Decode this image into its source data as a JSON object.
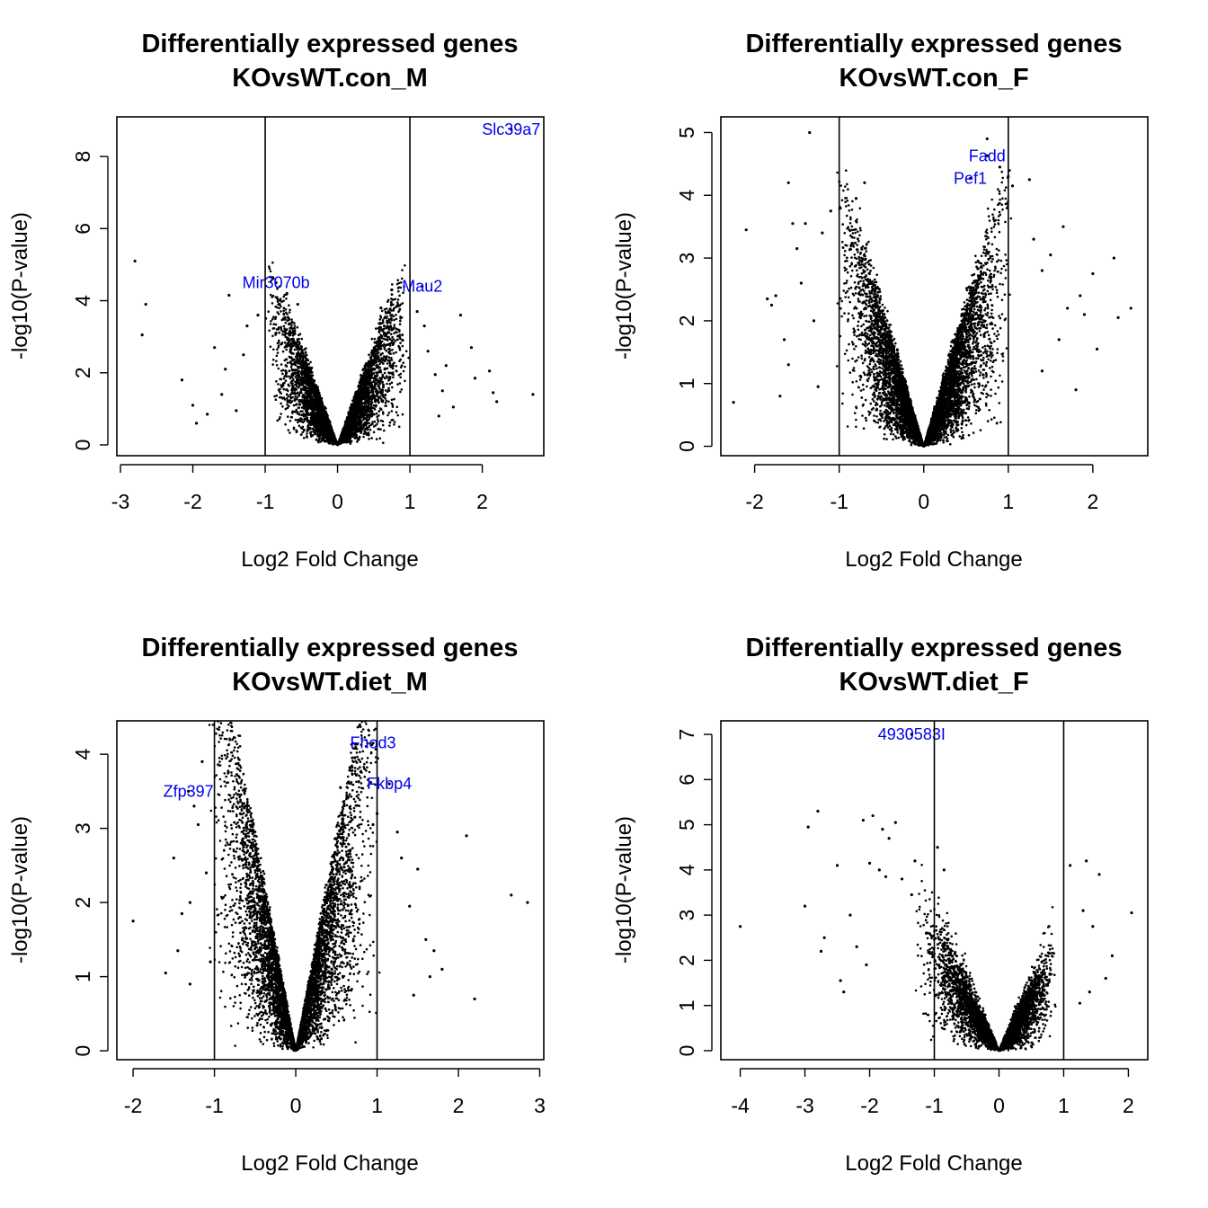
{
  "figure": {
    "point_color": "#000000",
    "label_color": "#0000ee"
  },
  "chart_data": [
    {
      "type": "scatter",
      "title": "Differentially expressed genes",
      "subtitle": "KOvsWT.con_M",
      "xlabel": "Log2 Fold Change",
      "ylabel": "-log10(P-value)",
      "xlim": [
        -3.05,
        2.85
      ],
      "ylim": [
        -0.3,
        9.1
      ],
      "xticks": [
        -3,
        -2,
        -1,
        0,
        1,
        2
      ],
      "yticks": [
        0,
        2,
        4,
        6,
        8
      ],
      "thresholds": [
        -1,
        1
      ],
      "grid": false,
      "legend": "none",
      "cloud": {
        "xmin": -1.0,
        "xmax": 1.0,
        "steepness": 5.2,
        "spread": 1.2,
        "count": 5000
      },
      "outliers": [
        [
          -2.8,
          5.1
        ],
        [
          -2.65,
          3.9
        ],
        [
          -2.7,
          3.05
        ],
        [
          -2.15,
          1.8
        ],
        [
          -2.0,
          1.1
        ],
        [
          -1.95,
          0.6
        ],
        [
          -1.7,
          2.7
        ],
        [
          -1.55,
          2.1
        ],
        [
          -1.5,
          4.15
        ],
        [
          -1.6,
          1.4
        ],
        [
          -1.8,
          0.85
        ],
        [
          -1.25,
          3.3
        ],
        [
          -1.3,
          2.5
        ],
        [
          -1.1,
          3.6
        ],
        [
          -1.4,
          0.95
        ],
        [
          -0.7,
          4.2
        ],
        [
          -0.55,
          3.9
        ],
        [
          -0.85,
          3.1
        ],
        [
          0.6,
          3.8
        ],
        [
          0.75,
          4.3
        ],
        [
          0.9,
          2.9
        ],
        [
          1.1,
          3.7
        ],
        [
          1.2,
          3.3
        ],
        [
          1.25,
          2.6
        ],
        [
          1.35,
          1.95
        ],
        [
          1.45,
          1.5
        ],
        [
          1.7,
          3.6
        ],
        [
          1.5,
          2.2
        ],
        [
          1.6,
          1.05
        ],
        [
          1.85,
          2.7
        ],
        [
          2.1,
          2.05
        ],
        [
          2.15,
          1.45
        ],
        [
          2.2,
          1.2
        ],
        [
          2.7,
          1.4
        ],
        [
          1.9,
          1.85
        ],
        [
          1.4,
          0.8
        ]
      ],
      "highlight": [
        {
          "gene": "Slc39a7",
          "x": 2.4,
          "y": 8.75
        },
        {
          "gene": "Mir3070b",
          "x": -0.85,
          "y": 4.5
        },
        {
          "gene": "Mau2",
          "x": 1.17,
          "y": 4.4
        }
      ]
    },
    {
      "type": "scatter",
      "title": "Differentially expressed genes",
      "subtitle": "KOvsWT.con_F",
      "xlabel": "Log2 Fold Change",
      "ylabel": "-log10(P-value)",
      "xlim": [
        -2.4,
        2.65
      ],
      "ylim": [
        -0.15,
        5.25
      ],
      "xticks": [
        -2,
        -1,
        0,
        1,
        2
      ],
      "yticks": [
        0,
        1,
        2,
        3,
        4,
        5
      ],
      "thresholds": [
        -1,
        1
      ],
      "grid": false,
      "legend": "none",
      "cloud": {
        "xmin": -1.05,
        "xmax": 1.05,
        "steepness": 4.3,
        "spread": 0.9,
        "count": 6500
      },
      "outliers": [
        [
          -2.25,
          0.7
        ],
        [
          -2.1,
          3.45
        ],
        [
          -1.85,
          2.35
        ],
        [
          -1.8,
          2.25
        ],
        [
          -1.75,
          2.4
        ],
        [
          -1.6,
          4.2
        ],
        [
          -1.55,
          3.55
        ],
        [
          -1.5,
          3.15
        ],
        [
          -1.65,
          1.7
        ],
        [
          -1.7,
          0.8
        ],
        [
          -1.4,
          3.55
        ],
        [
          -1.35,
          5.0
        ],
        [
          -1.3,
          2.0
        ],
        [
          -1.2,
          3.4
        ],
        [
          -1.45,
          2.6
        ],
        [
          -1.6,
          1.3
        ],
        [
          -1.25,
          0.95
        ],
        [
          -1.1,
          3.75
        ],
        [
          -0.8,
          3.95
        ],
        [
          -0.7,
          4.2
        ],
        [
          0.75,
          4.9
        ],
        [
          0.9,
          4.45
        ],
        [
          1.0,
          4.3
        ],
        [
          1.05,
          4.15
        ],
        [
          1.25,
          4.25
        ],
        [
          1.3,
          3.3
        ],
        [
          1.4,
          2.8
        ],
        [
          1.5,
          3.05
        ],
        [
          1.65,
          3.5
        ],
        [
          1.7,
          2.2
        ],
        [
          1.85,
          2.4
        ],
        [
          1.9,
          2.1
        ],
        [
          2.05,
          1.55
        ],
        [
          2.25,
          3.0
        ],
        [
          2.3,
          2.05
        ],
        [
          2.45,
          2.2
        ],
        [
          1.8,
          0.9
        ],
        [
          1.4,
          1.2
        ],
        [
          1.6,
          1.7
        ],
        [
          2.0,
          2.75
        ]
      ],
      "highlight": [
        {
          "gene": "Fadd",
          "x": 0.75,
          "y": 4.63
        },
        {
          "gene": "Pef1",
          "x": 0.55,
          "y": 4.27
        }
      ]
    },
    {
      "type": "scatter",
      "title": "Differentially expressed genes",
      "subtitle": "KOvsWT.diet_M",
      "xlabel": "Log2 Fold Change",
      "ylabel": "-log10(P-value)",
      "xlim": [
        -2.2,
        3.05
      ],
      "ylim": [
        -0.12,
        4.45
      ],
      "xticks": [
        -2,
        -1,
        0,
        1,
        2,
        3
      ],
      "yticks": [
        0,
        1,
        2,
        3,
        4
      ],
      "thresholds": [
        -1,
        1
      ],
      "grid": false,
      "legend": "none",
      "cloud": {
        "xmin": -1.1,
        "xmax": 1.05,
        "steepness": 5.6,
        "spread": 0.75,
        "count": 5500
      },
      "outliers": [
        [
          -2.0,
          1.75
        ],
        [
          -1.6,
          1.05
        ],
        [
          -1.5,
          2.6
        ],
        [
          -1.45,
          1.35
        ],
        [
          -1.3,
          2.0
        ],
        [
          -1.25,
          3.3
        ],
        [
          -1.2,
          3.05
        ],
        [
          -1.15,
          3.9
        ],
        [
          -1.3,
          0.9
        ],
        [
          -1.1,
          2.4
        ],
        [
          -1.05,
          1.2
        ],
        [
          -0.6,
          3.3
        ],
        [
          -0.55,
          3.1
        ],
        [
          -0.65,
          2.7
        ],
        [
          -1.4,
          1.85
        ],
        [
          0.55,
          3.55
        ],
        [
          0.95,
          3.05
        ],
        [
          1.0,
          3.2
        ],
        [
          1.25,
          2.95
        ],
        [
          1.3,
          2.6
        ],
        [
          1.4,
          1.95
        ],
        [
          1.5,
          2.45
        ],
        [
          1.6,
          1.5
        ],
        [
          1.65,
          1.0
        ],
        [
          1.7,
          1.35
        ],
        [
          2.1,
          2.9
        ],
        [
          2.2,
          0.7
        ],
        [
          2.65,
          2.1
        ],
        [
          2.85,
          2.0
        ],
        [
          1.8,
          1.1
        ],
        [
          1.45,
          0.75
        ]
      ],
      "highlight": [
        {
          "gene": "Fhod3",
          "x": 0.95,
          "y": 4.15
        },
        {
          "gene": "Fkbp4",
          "x": 1.15,
          "y": 3.6
        },
        {
          "gene": "Zfp397",
          "x": -1.32,
          "y": 3.5
        }
      ]
    },
    {
      "type": "scatter",
      "title": "Differentially expressed genes",
      "subtitle": "KOvsWT.diet_F",
      "xlabel": "Log2 Fold Change",
      "ylabel": "-log10(P-value)",
      "xlim": [
        -4.3,
        2.3
      ],
      "ylim": [
        -0.2,
        7.3
      ],
      "xticks": [
        -4,
        -3,
        -2,
        -1,
        0,
        1,
        2
      ],
      "yticks": [
        0,
        1,
        2,
        3,
        4,
        5,
        6,
        7
      ],
      "thresholds": [
        -1,
        1
      ],
      "grid": false,
      "legend": "none",
      "cloud": {
        "xmin": -1.3,
        "xmax": 0.9,
        "steepness": 2.6,
        "spread": 1.6,
        "count": 4500
      },
      "outliers": [
        [
          -4.0,
          2.75
        ],
        [
          -3.0,
          3.2
        ],
        [
          -2.95,
          4.95
        ],
        [
          -2.8,
          5.3
        ],
        [
          -2.75,
          2.2
        ],
        [
          -2.7,
          2.5
        ],
        [
          -2.5,
          4.1
        ],
        [
          -2.45,
          1.55
        ],
        [
          -2.4,
          1.3
        ],
        [
          -2.3,
          3.0
        ],
        [
          -2.1,
          5.1
        ],
        [
          -2.0,
          4.15
        ],
        [
          -1.95,
          5.2
        ],
        [
          -1.85,
          4.0
        ],
        [
          -1.8,
          4.9
        ],
        [
          -1.7,
          4.7
        ],
        [
          -1.6,
          5.05
        ],
        [
          -2.2,
          2.3
        ],
        [
          -2.05,
          1.9
        ],
        [
          -1.75,
          3.85
        ],
        [
          -1.5,
          3.8
        ],
        [
          -1.3,
          4.2
        ],
        [
          -0.95,
          4.5
        ],
        [
          -0.85,
          4.0
        ],
        [
          -1.35,
          3.45
        ],
        [
          1.1,
          4.1
        ],
        [
          1.35,
          4.2
        ],
        [
          1.55,
          3.9
        ],
        [
          1.65,
          1.6
        ],
        [
          1.75,
          2.1
        ],
        [
          2.05,
          3.05
        ],
        [
          1.3,
          3.1
        ],
        [
          1.45,
          2.75
        ],
        [
          1.25,
          1.05
        ],
        [
          1.4,
          1.3
        ]
      ],
      "highlight": [
        {
          "gene": "4930583I",
          "x": -1.35,
          "y": 7.0
        }
      ]
    }
  ]
}
